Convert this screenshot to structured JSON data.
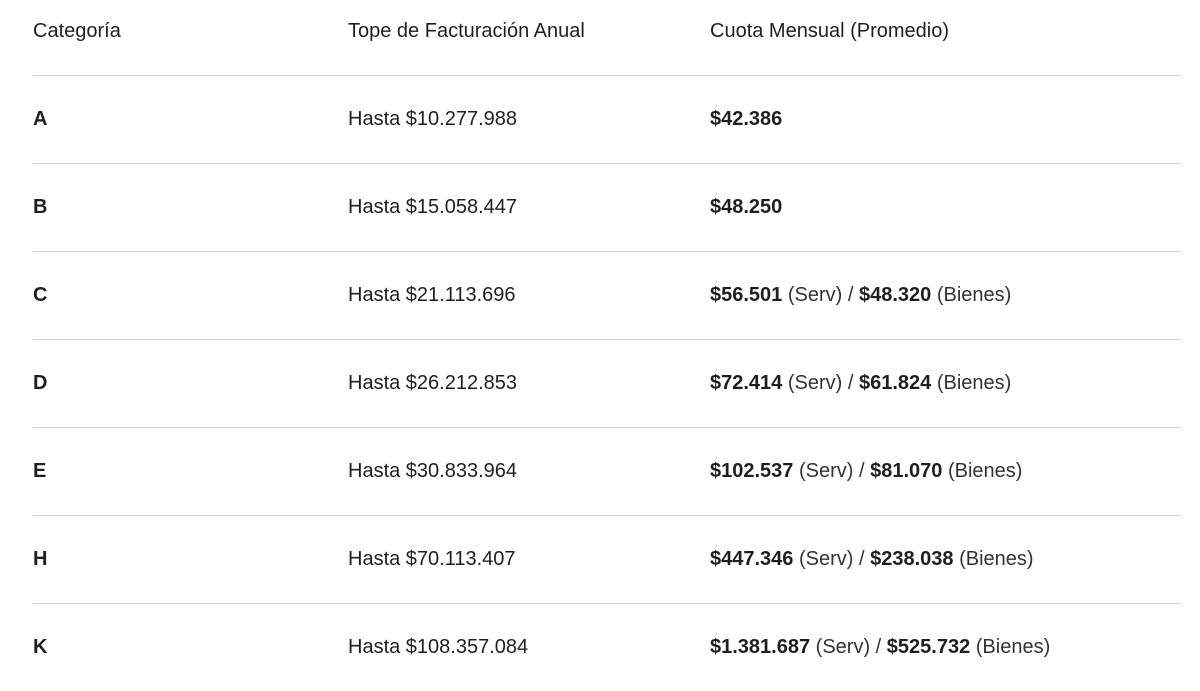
{
  "table": {
    "headers": [
      "Categoría",
      "Tope de Facturación Anual",
      "Cuota Mensual (Promedio)"
    ],
    "rows": [
      {
        "category": "A",
        "cap": "Hasta $10.277.988",
        "fee_serv": "$42.386",
        "serv_label": "",
        "separator": "",
        "fee_bienes": "",
        "bienes_label": ""
      },
      {
        "category": "B",
        "cap": "Hasta $15.058.447",
        "fee_serv": "$48.250",
        "serv_label": "",
        "separator": "",
        "fee_bienes": "",
        "bienes_label": ""
      },
      {
        "category": "C",
        "cap": "Hasta $21.113.696",
        "fee_serv": "$56.501",
        "serv_label": " (Serv) ",
        "separator": "/ ",
        "fee_bienes": "$48.320",
        "bienes_label": " (Bienes)"
      },
      {
        "category": "D",
        "cap": "Hasta $26.212.853",
        "fee_serv": "$72.414",
        "serv_label": " (Serv) ",
        "separator": "/ ",
        "fee_bienes": "$61.824",
        "bienes_label": " (Bienes)"
      },
      {
        "category": "E",
        "cap": "Hasta $30.833.964",
        "fee_serv": "$102.537",
        "serv_label": " (Serv) ",
        "separator": "/ ",
        "fee_bienes": "$81.070",
        "bienes_label": " (Bienes)"
      },
      {
        "category": "H",
        "cap": "Hasta $70.113.407",
        "fee_serv": "$447.346",
        "serv_label": " (Serv) ",
        "separator": "/ ",
        "fee_bienes": "$238.038",
        "bienes_label": " (Bienes)"
      },
      {
        "category": "K",
        "cap": "Hasta $108.357.084",
        "fee_serv": "$1.381.687",
        "serv_label": " (Serv) ",
        "separator": "/ ",
        "fee_bienes": "$525.732",
        "bienes_label": " (Bienes)"
      }
    ]
  },
  "colors": {
    "text": "#1f1f1f",
    "divider": "#d3d3d3",
    "background": "#ffffff"
  }
}
